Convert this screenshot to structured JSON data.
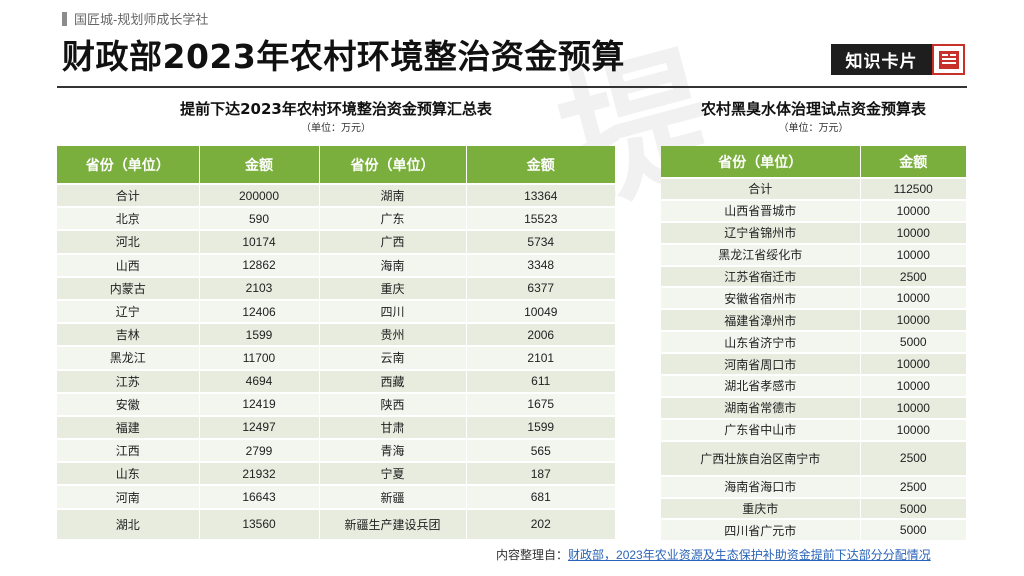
{
  "header": {
    "brand": "国匠城-规划师成长学社",
    "title": "财政部2023年农村环境整治资金预算",
    "card_label": "知识卡片",
    "card_icon": "document-icon",
    "watermark": "提"
  },
  "left_table": {
    "title": "提前下达2023年农村环境整治资金预算汇总表",
    "unit": "（单位：万元）",
    "headers": [
      "省份（单位）",
      "金额",
      "省份（单位）",
      "金额"
    ],
    "rows": [
      [
        "合计",
        "200000",
        "湖南",
        "13364"
      ],
      [
        "北京",
        "590",
        "广东",
        "15523"
      ],
      [
        "河北",
        "10174",
        "广西",
        "5734"
      ],
      [
        "山西",
        "12862",
        "海南",
        "3348"
      ],
      [
        "内蒙古",
        "2103",
        "重庆",
        "6377"
      ],
      [
        "辽宁",
        "12406",
        "四川",
        "10049"
      ],
      [
        "吉林",
        "1599",
        "贵州",
        "2006"
      ],
      [
        "黑龙江",
        "11700",
        "云南",
        "2101"
      ],
      [
        "江苏",
        "4694",
        "西藏",
        "611"
      ],
      [
        "安徽",
        "12419",
        "陕西",
        "1675"
      ],
      [
        "福建",
        "12497",
        "甘肃",
        "1599"
      ],
      [
        "江西",
        "2799",
        "青海",
        "565"
      ],
      [
        "山东",
        "21932",
        "宁夏",
        "187"
      ],
      [
        "河南",
        "16643",
        "新疆",
        "681"
      ],
      [
        "湖北",
        "13560",
        "新疆生产建设兵团",
        "202"
      ]
    ]
  },
  "right_table": {
    "title": "农村黑臭水体治理试点资金预算表",
    "unit": "（单位：万元）",
    "headers": [
      "省份（单位）",
      "金额"
    ],
    "rows": [
      [
        "合计",
        "112500"
      ],
      [
        "山西省晋城市",
        "10000"
      ],
      [
        "辽宁省锦州市",
        "10000"
      ],
      [
        "黑龙江省绥化市",
        "10000"
      ],
      [
        "江苏省宿迁市",
        "2500"
      ],
      [
        "安徽省宿州市",
        "10000"
      ],
      [
        "福建省漳州市",
        "10000"
      ],
      [
        "山东省济宁市",
        "5000"
      ],
      [
        "河南省周口市",
        "10000"
      ],
      [
        "湖北省孝感市",
        "10000"
      ],
      [
        "湖南省常德市",
        "10000"
      ],
      [
        "广东省中山市",
        "10000"
      ],
      [
        "广西壮族自治区南宁市",
        "2500"
      ],
      [
        "海南省海口市",
        "2500"
      ],
      [
        "重庆市",
        "5000"
      ],
      [
        "四川省广元市",
        "5000"
      ]
    ]
  },
  "footer": {
    "source_prefix": "内容整理自：",
    "source_text": "财政部，2023年农业资源及生态保护补助资金提前下达部分分配情况"
  }
}
